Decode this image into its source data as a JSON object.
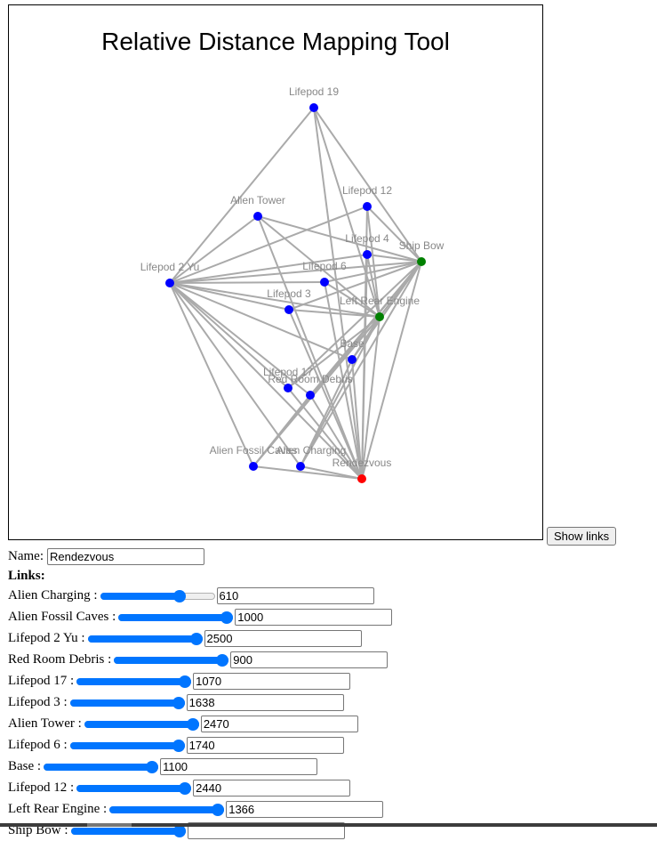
{
  "map": {
    "title": "Relative Distance Mapping Tool",
    "node_colors": {
      "normal": "#0000ff",
      "anchor": "#008000",
      "selected": "#ff0000"
    },
    "nodes": [
      {
        "id": "lifepod19",
        "label": "Lifepod 19",
        "type": "normal"
      },
      {
        "id": "alientower",
        "label": "Alien Tower",
        "type": "normal"
      },
      {
        "id": "lifepod12",
        "label": "Lifepod 12",
        "type": "normal"
      },
      {
        "id": "lifepod4",
        "label": "Lifepod 4",
        "type": "normal"
      },
      {
        "id": "shipbow",
        "label": "Ship Bow",
        "type": "anchor"
      },
      {
        "id": "lifepod2yu",
        "label": "Lifepod 2 Yu",
        "type": "normal"
      },
      {
        "id": "lifepod6",
        "label": "Lifepod 6",
        "type": "normal"
      },
      {
        "id": "lifepod3",
        "label": "Lifepod 3",
        "type": "normal"
      },
      {
        "id": "leftrearengine",
        "label": "Left Rear Engine",
        "type": "anchor"
      },
      {
        "id": "base",
        "label": "Base",
        "type": "normal"
      },
      {
        "id": "lifepod17",
        "label": "Lifepod 17",
        "type": "normal"
      },
      {
        "id": "redroomdebris",
        "label": "Red Room Debris",
        "type": "normal"
      },
      {
        "id": "alienfossilcaves",
        "label": "Alien Fossil Caves",
        "type": "normal"
      },
      {
        "id": "aliencharging",
        "label": "Alien Charging",
        "type": "normal"
      },
      {
        "id": "rendezvous",
        "label": "Rendezvous",
        "type": "selected"
      }
    ]
  },
  "show_links_label": "Show links",
  "form": {
    "name_label": "Name:",
    "name_value": "Rendezvous",
    "links_heading": "Links:",
    "links": [
      {
        "label": "Alien Charging :",
        "value": "610",
        "slider_fraction": 0.72
      },
      {
        "label": "Alien Fossil Caves :",
        "value": "1000",
        "slider_fraction": 1.0
      },
      {
        "label": "Lifepod 2 Yu :",
        "value": "2500",
        "slider_fraction": 1.0
      },
      {
        "label": "Red Room Debris :",
        "value": "900",
        "slider_fraction": 1.0
      },
      {
        "label": "Lifepod 17 :",
        "value": "1070",
        "slider_fraction": 1.0
      },
      {
        "label": "Lifepod 3 :",
        "value": "1638",
        "slider_fraction": 1.0
      },
      {
        "label": "Alien Tower :",
        "value": "2470",
        "slider_fraction": 1.0
      },
      {
        "label": "Lifepod 6 :",
        "value": "1740",
        "slider_fraction": 1.0
      },
      {
        "label": "Base :",
        "value": "1100",
        "slider_fraction": 1.0
      },
      {
        "label": "Lifepod 12 :",
        "value": "2440",
        "slider_fraction": 1.0
      },
      {
        "label": "Left Rear Engine :",
        "value": "1366",
        "slider_fraction": 1.0
      },
      {
        "label": "Ship Bow :",
        "value": "",
        "slider_fraction": 1.0
      }
    ]
  }
}
